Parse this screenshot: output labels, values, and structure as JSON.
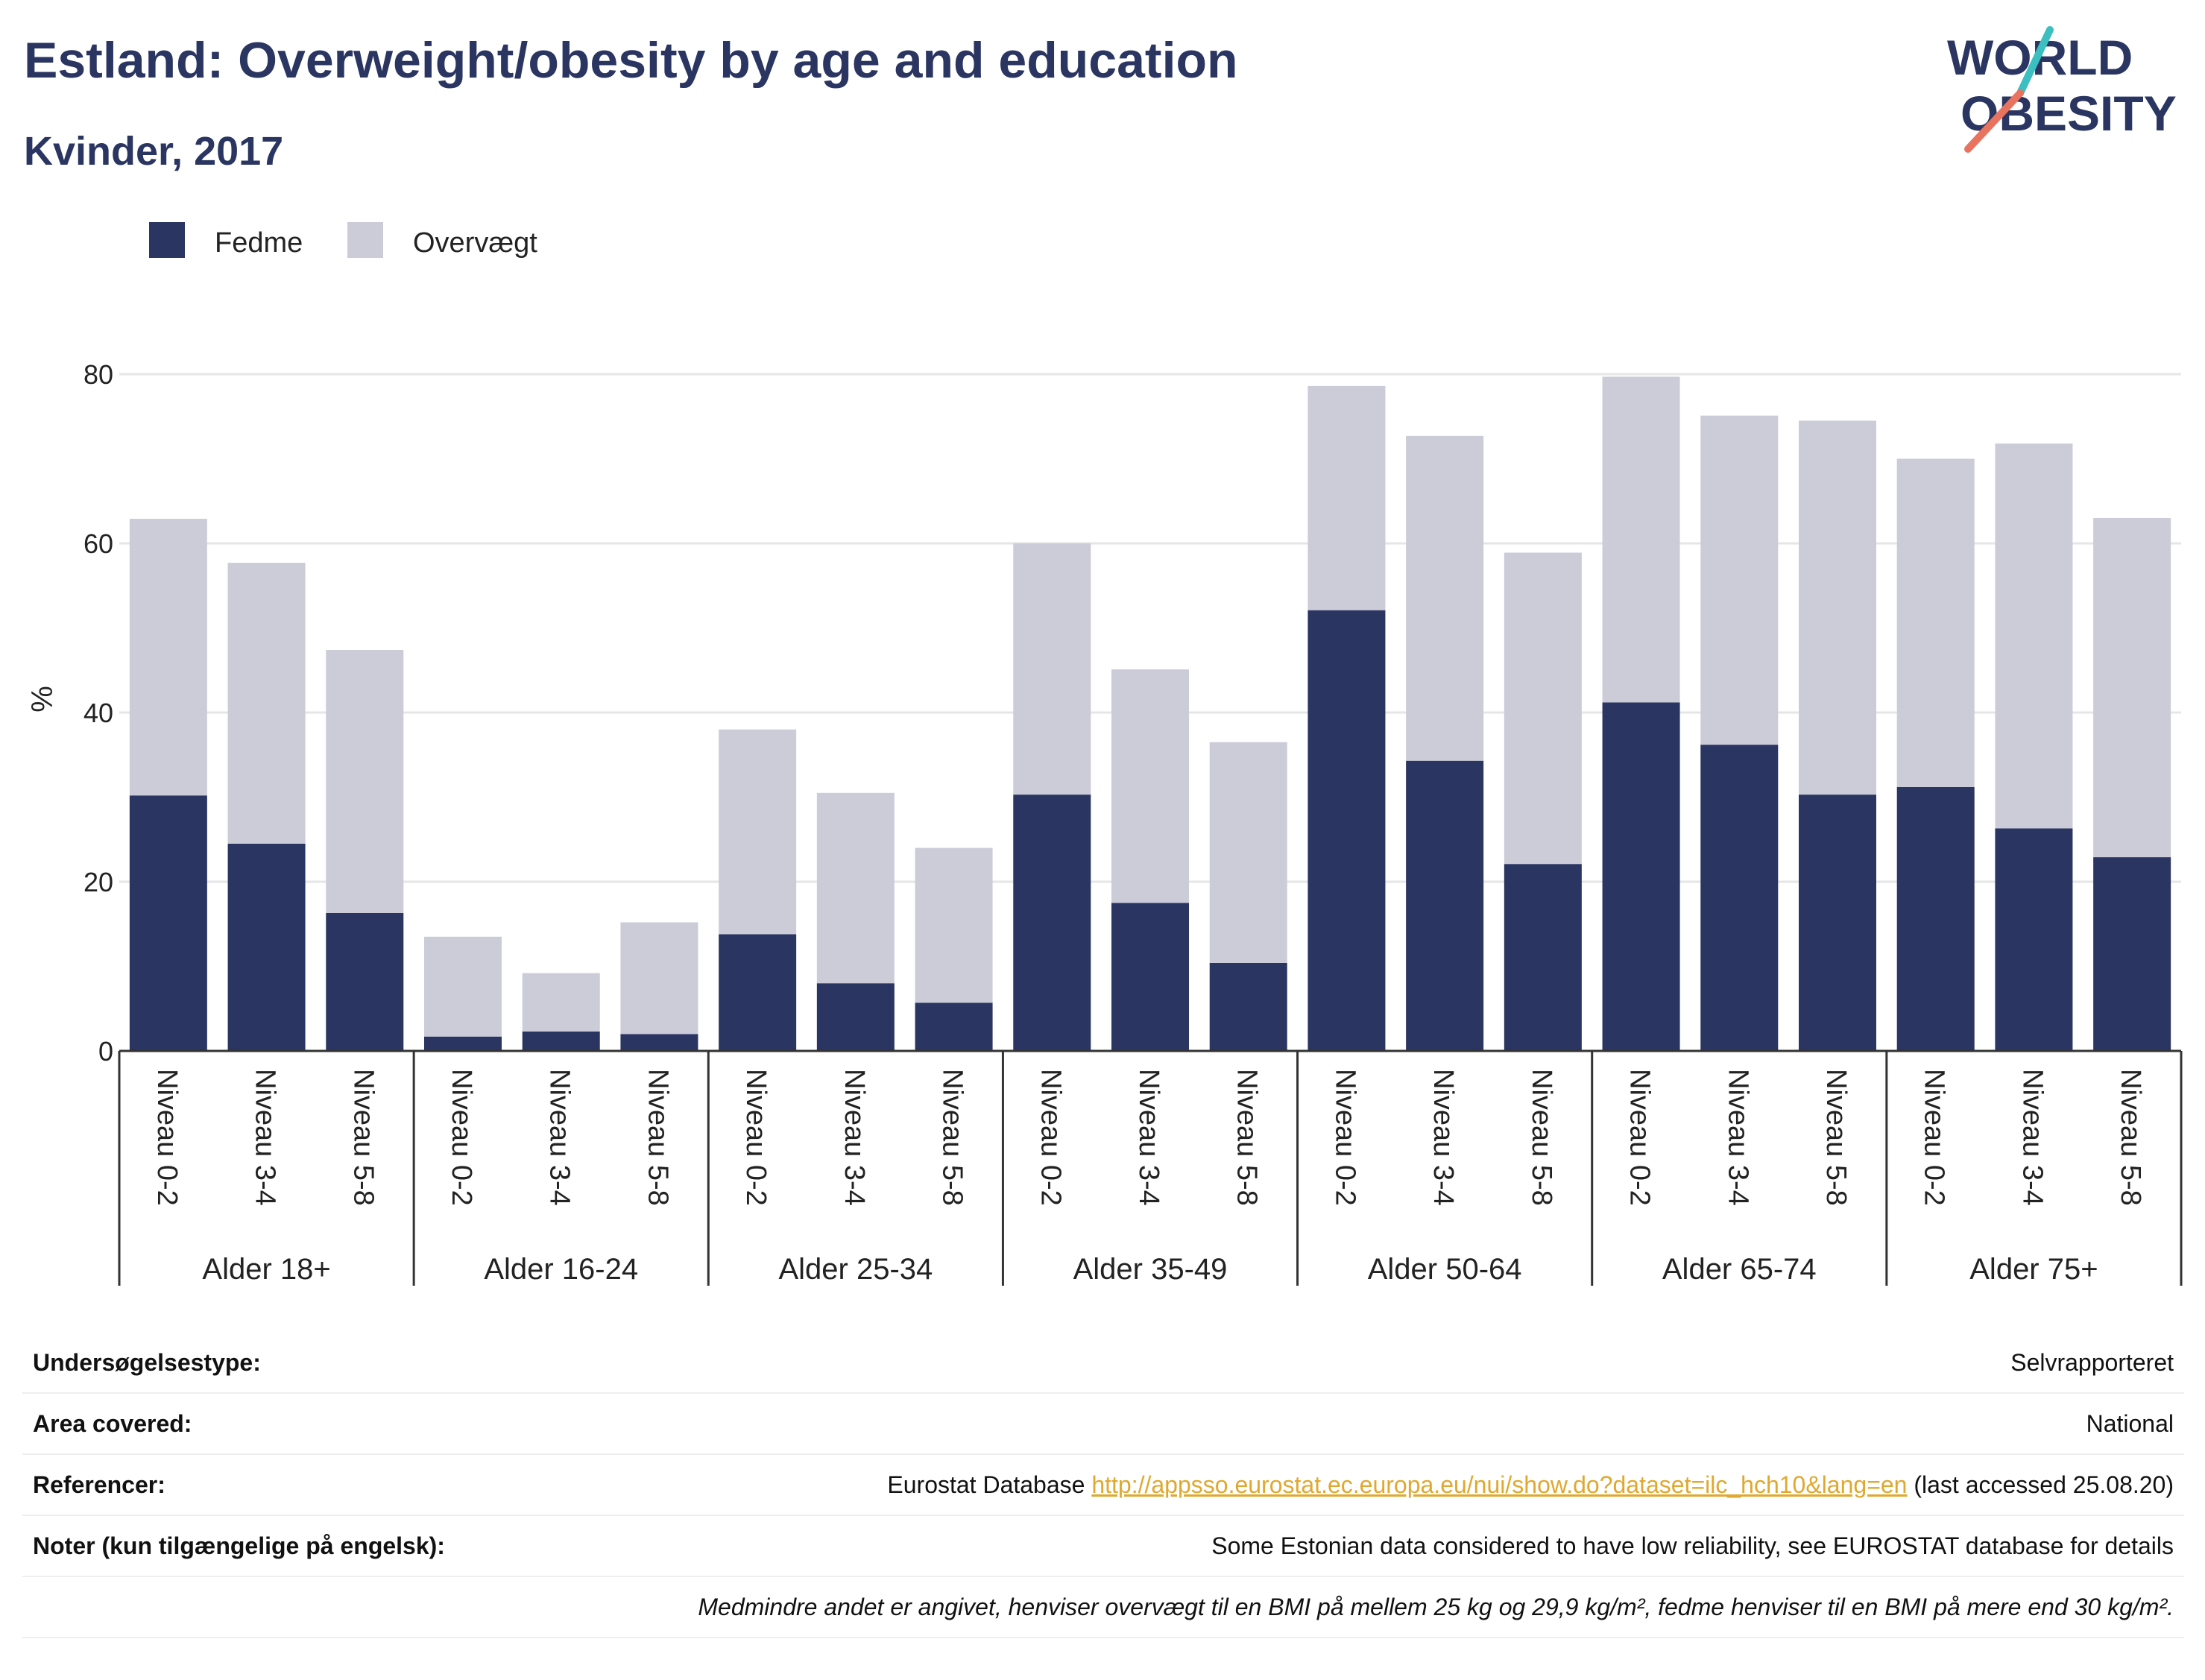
{
  "header": {
    "title": "Estland: Overweight/obesity by age and education",
    "subtitle": "Kvinder, 2017"
  },
  "logo": {
    "line1": "WORLD",
    "line2": "OBESITY"
  },
  "colors": {
    "fedme": "#2a3561",
    "overvaegt": "#cbccd8",
    "grid": "#e6e6e6",
    "axis": "#333333",
    "logo_teal": "#3bbfc0",
    "logo_coral": "#e8735f"
  },
  "chart_data": {
    "type": "bar",
    "stacked": true,
    "ylabel": "%",
    "ylim": [
      0,
      85
    ],
    "yticks": [
      0,
      20,
      40,
      60,
      80
    ],
    "legend_position": "top-left",
    "groups": [
      {
        "label": "Alder 18+",
        "categories": [
          "Niveau 0-2",
          "Niveau 3-4",
          "Niveau 5-8"
        ]
      },
      {
        "label": "Alder 16-24",
        "categories": [
          "Niveau 0-2",
          "Niveau 3-4",
          "Niveau 5-8"
        ]
      },
      {
        "label": "Alder 25-34",
        "categories": [
          "Niveau 0-2",
          "Niveau 3-4",
          "Niveau 5-8"
        ]
      },
      {
        "label": "Alder 35-49",
        "categories": [
          "Niveau 0-2",
          "Niveau 3-4",
          "Niveau 5-8"
        ]
      },
      {
        "label": "Alder 50-64",
        "categories": [
          "Niveau 0-2",
          "Niveau 3-4",
          "Niveau 5-8"
        ]
      },
      {
        "label": "Alder 65-74",
        "categories": [
          "Niveau 0-2",
          "Niveau 3-4",
          "Niveau 5-8"
        ]
      },
      {
        "label": "Alder 75+",
        "categories": [
          "Niveau 0-2",
          "Niveau 3-4",
          "Niveau 5-8"
        ]
      }
    ],
    "series": [
      {
        "name": "Fedme",
        "values": [
          30.2,
          24.5,
          16.3,
          1.7,
          2.3,
          2.0,
          13.8,
          8.0,
          5.7,
          30.3,
          17.5,
          10.4,
          52.1,
          34.3,
          22.1,
          41.2,
          36.2,
          30.3,
          31.2,
          26.3,
          22.9
        ]
      },
      {
        "name": "Overvægt",
        "values": [
          32.7,
          33.2,
          31.1,
          11.8,
          6.9,
          13.2,
          24.2,
          22.5,
          18.3,
          29.7,
          27.6,
          26.1,
          26.5,
          38.4,
          36.8,
          38.5,
          38.9,
          44.2,
          38.8,
          45.5,
          40.1
        ]
      }
    ]
  },
  "info": {
    "rows": [
      {
        "key": "Undersøgelsestype:",
        "value": "Selvrapporteret"
      },
      {
        "key": "Area covered:",
        "value": "National"
      },
      {
        "key": "Referencer:",
        "value_prefix": "Eurostat Database ",
        "link": "http://appsso.eurostat.ec.europa.eu/nui/show.do?dataset=ilc_hch10&lang=en",
        "value_suffix": " (last accessed 25.08.20)"
      },
      {
        "key": "Noter (kun tilgængelige på engelsk):",
        "value": "Some Estonian data considered to have low reliability, see EUROSTAT database for details"
      }
    ],
    "footnote": "Medmindre andet er angivet, henviser overvægt til en BMI på mellem 25 kg og 29,9 kg/m², fedme henviser til en BMI på mere end 30 kg/m²."
  }
}
